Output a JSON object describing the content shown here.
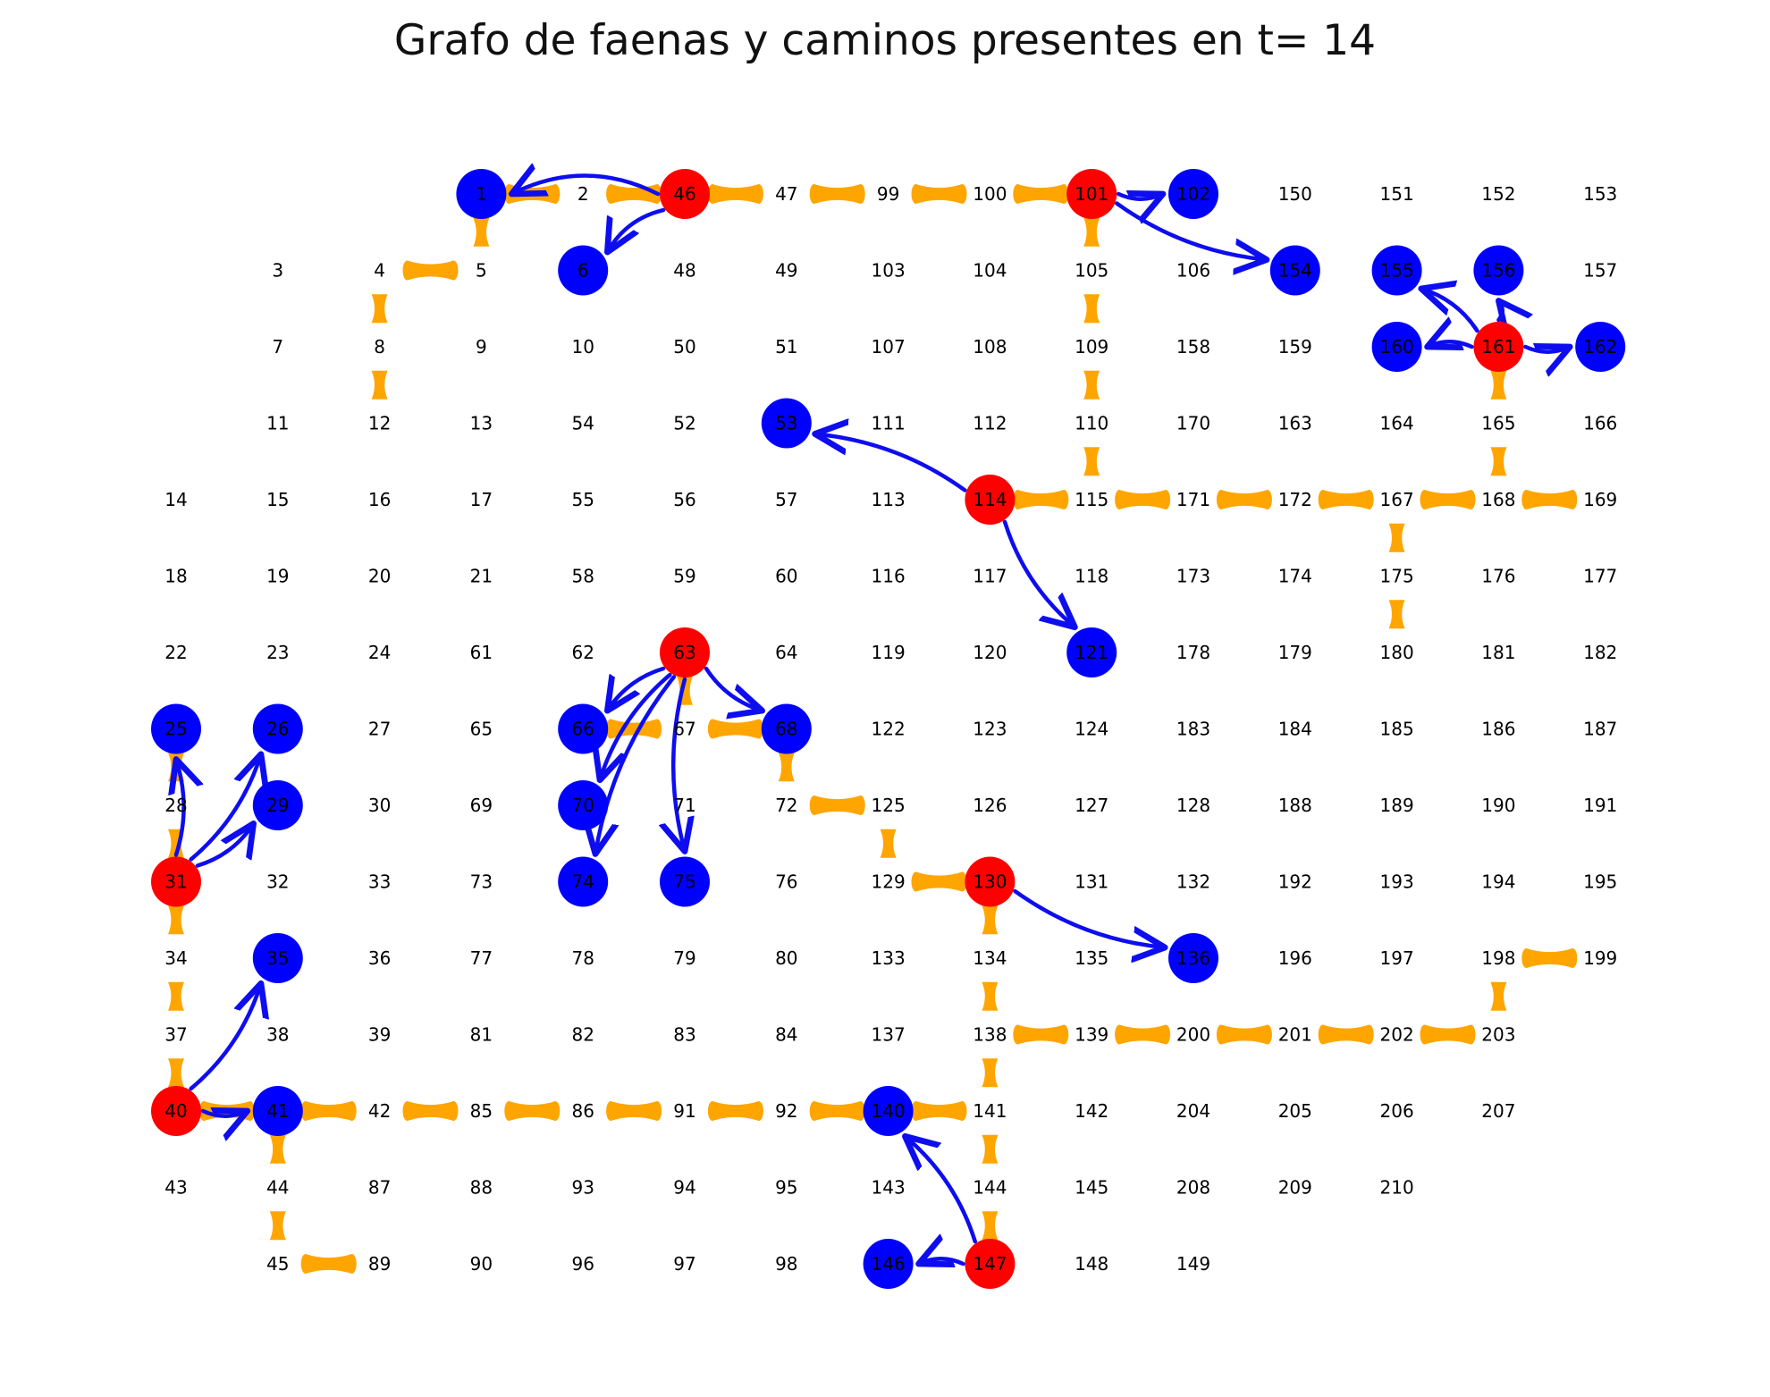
{
  "title": "Grafo de faenas y caminos presentes en t= 14",
  "colors": {
    "red_node": "#ff0000",
    "blue_node": "#0000ff",
    "arrow": "#0d0df0",
    "road": "#ffa500",
    "label": "#000000",
    "background": "#ffffff"
  },
  "grid": {
    "rows": [
      [
        "",
        "",
        "",
        "1",
        "2",
        "46",
        "47",
        "99",
        "100",
        "101",
        "102",
        "150",
        "151",
        "152",
        "153"
      ],
      [
        "",
        "3",
        "4",
        "5",
        "6",
        "48",
        "49",
        "103",
        "104",
        "105",
        "106",
        "154",
        "155",
        "156",
        "157"
      ],
      [
        "",
        "7",
        "8",
        "9",
        "10",
        "50",
        "51",
        "107",
        "108",
        "109",
        "158",
        "159",
        "160",
        "161",
        "162"
      ],
      [
        "",
        "11",
        "12",
        "13",
        "54",
        "52",
        "53",
        "111",
        "112",
        "110",
        "170",
        "163",
        "164",
        "165",
        "166"
      ],
      [
        "14",
        "15",
        "16",
        "17",
        "55",
        "56",
        "57",
        "113",
        "114",
        "115",
        "171",
        "172",
        "167",
        "168",
        "169"
      ],
      [
        "18",
        "19",
        "20",
        "21",
        "58",
        "59",
        "60",
        "116",
        "117",
        "118",
        "173",
        "174",
        "175",
        "176",
        "177"
      ],
      [
        "22",
        "23",
        "24",
        "61",
        "62",
        "63",
        "64",
        "119",
        "120",
        "121",
        "178",
        "179",
        "180",
        "181",
        "182"
      ],
      [
        "25",
        "26",
        "27",
        "65",
        "66",
        "67",
        "68",
        "122",
        "123",
        "124",
        "183",
        "184",
        "185",
        "186",
        "187"
      ],
      [
        "28",
        "29",
        "30",
        "69",
        "70",
        "71",
        "72",
        "125",
        "126",
        "127",
        "128",
        "188",
        "189",
        "190",
        "191"
      ],
      [
        "31",
        "32",
        "33",
        "73",
        "74",
        "75",
        "76",
        "129",
        "130",
        "131",
        "132",
        "192",
        "193",
        "194",
        "195"
      ],
      [
        "34",
        "35",
        "36",
        "77",
        "78",
        "79",
        "80",
        "133",
        "134",
        "135",
        "136",
        "196",
        "197",
        "198",
        "199"
      ],
      [
        "37",
        "38",
        "39",
        "81",
        "82",
        "83",
        "84",
        "137",
        "138",
        "139",
        "200",
        "201",
        "202",
        "203",
        ""
      ],
      [
        "40",
        "41",
        "42",
        "85",
        "86",
        "91",
        "92",
        "140",
        "141",
        "142",
        "204",
        "205",
        "206",
        "207",
        ""
      ],
      [
        "43",
        "44",
        "87",
        "88",
        "93",
        "94",
        "95",
        "143",
        "144",
        "145",
        "208",
        "209",
        "210",
        "",
        ""
      ],
      [
        "",
        "45",
        "89",
        "90",
        "96",
        "97",
        "98",
        "146",
        "147",
        "148",
        "149",
        "",
        "",
        "",
        ""
      ]
    ]
  },
  "red_nodes": [
    "46",
    "101",
    "161",
    "114",
    "63",
    "31",
    "130",
    "40",
    "147"
  ],
  "blue_nodes": [
    "1",
    "102",
    "6",
    "154",
    "155",
    "156",
    "160",
    "162",
    "53",
    "121",
    "25",
    "26",
    "66",
    "68",
    "29",
    "70",
    "74",
    "75",
    "35",
    "136",
    "41",
    "140",
    "146"
  ],
  "roads": [
    [
      "1",
      "2"
    ],
    [
      "2",
      "46"
    ],
    [
      "46",
      "47"
    ],
    [
      "47",
      "99"
    ],
    [
      "99",
      "100"
    ],
    [
      "100",
      "101"
    ],
    [
      "1",
      "5"
    ],
    [
      "4",
      "5"
    ],
    [
      "4",
      "8"
    ],
    [
      "8",
      "12"
    ],
    [
      "101",
      "105"
    ],
    [
      "105",
      "109"
    ],
    [
      "109",
      "110"
    ],
    [
      "110",
      "115"
    ],
    [
      "114",
      "115"
    ],
    [
      "115",
      "171"
    ],
    [
      "171",
      "172"
    ],
    [
      "172",
      "167"
    ],
    [
      "167",
      "168"
    ],
    [
      "168",
      "169"
    ],
    [
      "161",
      "165"
    ],
    [
      "165",
      "168"
    ],
    [
      "167",
      "175"
    ],
    [
      "175",
      "180"
    ],
    [
      "63",
      "67"
    ],
    [
      "66",
      "67"
    ],
    [
      "67",
      "68"
    ],
    [
      "68",
      "72"
    ],
    [
      "72",
      "125"
    ],
    [
      "125",
      "129"
    ],
    [
      "129",
      "130"
    ],
    [
      "130",
      "134"
    ],
    [
      "134",
      "138"
    ],
    [
      "138",
      "139"
    ],
    [
      "139",
      "200"
    ],
    [
      "200",
      "201"
    ],
    [
      "201",
      "202"
    ],
    [
      "202",
      "203"
    ],
    [
      "203",
      "198"
    ],
    [
      "198",
      "199"
    ],
    [
      "138",
      "141"
    ],
    [
      "141",
      "144"
    ],
    [
      "144",
      "147"
    ],
    [
      "25",
      "28"
    ],
    [
      "28",
      "31"
    ],
    [
      "31",
      "34"
    ],
    [
      "34",
      "37"
    ],
    [
      "37",
      "40"
    ],
    [
      "40",
      "41"
    ],
    [
      "41",
      "42"
    ],
    [
      "42",
      "85"
    ],
    [
      "85",
      "86"
    ],
    [
      "86",
      "91"
    ],
    [
      "91",
      "92"
    ],
    [
      "92",
      "140"
    ],
    [
      "140",
      "141"
    ],
    [
      "41",
      "44"
    ],
    [
      "44",
      "45"
    ],
    [
      "45",
      "89"
    ]
  ],
  "arrows": [
    {
      "from": "46",
      "to": "1",
      "bend": 0.18
    },
    {
      "from": "46",
      "to": "6",
      "bend": 0.12
    },
    {
      "from": "101",
      "to": "102",
      "bend": 0.1
    },
    {
      "from": "101",
      "to": "154",
      "bend": 0.1
    },
    {
      "from": "161",
      "to": "155",
      "bend": 0.1
    },
    {
      "from": "161",
      "to": "156",
      "bend": 0.1
    },
    {
      "from": "161",
      "to": "160",
      "bend": 0.1
    },
    {
      "from": "161",
      "to": "162",
      "bend": 0.1
    },
    {
      "from": "114",
      "to": "53",
      "bend": 0.1
    },
    {
      "from": "114",
      "to": "121",
      "bend": 0.1
    },
    {
      "from": "63",
      "to": "66",
      "bend": 0.1
    },
    {
      "from": "63",
      "to": "68",
      "bend": 0.1
    },
    {
      "from": "63",
      "to": "70",
      "bend": 0.1
    },
    {
      "from": "63",
      "to": "74",
      "bend": 0.1
    },
    {
      "from": "63",
      "to": "75",
      "bend": 0.1
    },
    {
      "from": "31",
      "to": "25",
      "bend": 0.1
    },
    {
      "from": "31",
      "to": "26",
      "bend": 0.1
    },
    {
      "from": "31",
      "to": "29",
      "bend": 0.1
    },
    {
      "from": "130",
      "to": "136",
      "bend": 0.1
    },
    {
      "from": "40",
      "to": "35",
      "bend": 0.1
    },
    {
      "from": "40",
      "to": "41",
      "bend": 0.1
    },
    {
      "from": "147",
      "to": "140",
      "bend": 0.1
    },
    {
      "from": "147",
      "to": "146",
      "bend": 0.1
    }
  ]
}
